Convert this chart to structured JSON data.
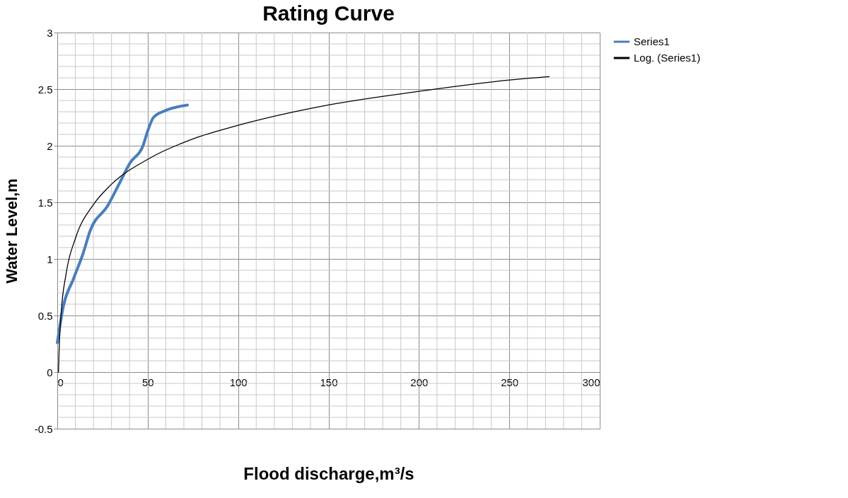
{
  "chart_data": {
    "type": "line",
    "title": "Rating Curve",
    "xlabel": "Flood discharge,m³/s",
    "ylabel": "Water Level,m",
    "xlim": [
      0,
      300
    ],
    "xticks": [
      0,
      50,
      100,
      150,
      200,
      250,
      300
    ],
    "ylim": [
      -0.5,
      3
    ],
    "yticks": [
      -0.5,
      0,
      0.5,
      1,
      1.5,
      2,
      2.5,
      3
    ],
    "grid": true,
    "legend": "right",
    "marker": "none",
    "line_style": "solid",
    "series": [
      {
        "name": "Series1",
        "color": "#4a7ebb",
        "x": [
          0,
          3.2,
          9.1,
          14.3,
          18.2,
          27.9,
          33.8,
          40.3,
          47.4,
          50,
          53.2,
          59.7,
          72
        ],
        "values": [
          0.26,
          0.57,
          0.83,
          1.05,
          1.25,
          1.47,
          1.65,
          1.85,
          2.0,
          2.13,
          2.25,
          2.31,
          2.36
        ]
      },
      {
        "name": "Log. (Series1)",
        "color": "#000000",
        "type": "line",
        "x": [
          0.65,
          1,
          2,
          5,
          10,
          20,
          30,
          50,
          75,
          100,
          150,
          200,
          250,
          272
        ],
        "values": [
          0.0,
          0.19,
          0.49,
          0.88,
          1.18,
          1.48,
          1.66,
          1.88,
          2.06,
          2.18,
          2.36,
          2.48,
          2.58,
          2.61
        ]
      }
    ]
  }
}
